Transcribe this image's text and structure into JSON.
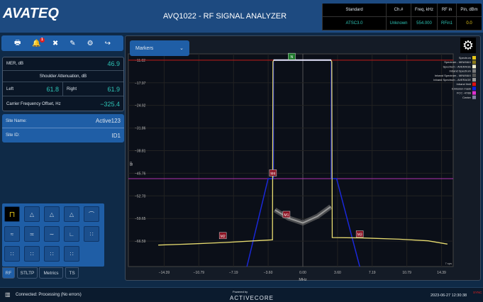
{
  "header": {
    "logo": "AVATEQ",
    "title": "AVQ1022 - RF SIGNAL ANALYZER",
    "info_headers": [
      "Standard",
      "Ch.#",
      "Freq, kHz",
      "RF in",
      "Pin, dBm"
    ],
    "info_values": [
      "ATSC3.0",
      "Unknown",
      "554.000",
      "RFin1",
      "0.0"
    ]
  },
  "toolbar": {
    "icons": [
      "printer-icon",
      "bell-icon",
      "tools-icon",
      "pencil-icon",
      "gears-icon",
      "logout-icon"
    ],
    "notification_count": "1"
  },
  "metrics": {
    "mer_label": "MER, dB",
    "mer": "46.9",
    "shoulder_label": "Shoulder Attenuation, dB",
    "left_label": "Left",
    "left": "61.8",
    "right_label": "Right",
    "right": "61.9",
    "cfo_label": "Carrier Frequency Offset, Hz",
    "cfo": "−325.4"
  },
  "site": {
    "name_label": "Site Name:",
    "name": "Active123",
    "id_label": "Site ID:",
    "id": "ID1"
  },
  "tabs": [
    "RF",
    "STLTP",
    "Metrics",
    "TS"
  ],
  "markers_dropdown": "Markers",
  "status": {
    "text": "Connected: Processing (No errors)",
    "powered": "Powered by",
    "brand": "ACTIVECORE",
    "datetime": "2023-06-27 12:30:38",
    "sync": "SYNC"
  },
  "chart_data": {
    "type": "line",
    "xlabel": "MHz",
    "ylabel": "dB",
    "corner_note": "7 sps",
    "xticks": [
      "−14.39",
      "−10.79",
      "−7.19",
      "−3.60",
      "0.00",
      "3.60",
      "7.19",
      "10.79",
      "14.39"
    ],
    "xtick_values": [
      -14.39,
      -10.79,
      -7.19,
      -3.6,
      0,
      3.6,
      7.19,
      10.79,
      14.39
    ],
    "yticks": [
      "−11.02",
      "−17.97",
      "−24.92",
      "−31.86",
      "−38.81",
      "−45.76",
      "−52.70",
      "−59.65",
      "−66.59"
    ],
    "ytick_values": [
      -11.02,
      -17.97,
      -24.92,
      -31.86,
      -38.81,
      -45.76,
      -52.7,
      -59.65,
      -66.59
    ],
    "xlim": [
      -18.1,
      15.6
    ],
    "ylim": [
      -74.4,
      -9.1
    ],
    "grid": true,
    "legend_position": "top-right",
    "legend": [
      {
        "name": "Spectrum",
        "color": "#e6c619"
      },
      {
        "name": "Spectrum - MIN/MAX",
        "color": "#8a7a1a"
      },
      {
        "name": "Spectrum - AVERAGE",
        "color": "#f3f0d0"
      },
      {
        "name": "Inband Spectrum",
        "color": "#7a7a7a"
      },
      {
        "name": "Inband Spectrum - MIN/MAX",
        "color": "#555555"
      },
      {
        "name": "Inband Spectrum - AVERAGE",
        "color": "#999999"
      },
      {
        "name": "Inband limit",
        "color": "#e01010"
      },
      {
        "name": "Emission mask",
        "color": "#1020e0"
      },
      {
        "name": "FCC -47dB",
        "color": "#e030d0"
      },
      {
        "name": "Center",
        "color": "#8080a0"
      }
    ],
    "spectrum": {
      "x": [
        -15,
        -12,
        -8,
        -5,
        -3.15,
        -3.1,
        -3.0,
        0,
        2.9,
        3.0,
        3.05,
        6,
        10,
        13,
        15
      ],
      "y": [
        -67.8,
        -67.5,
        -67,
        -66.5,
        -66.2,
        -11.5,
        -11,
        -11,
        -11,
        -11.5,
        -65.5,
        -65.6,
        -66,
        -66.5,
        -67.5
      ]
    },
    "inband": {
      "x": [
        -2.9,
        -1.5,
        0,
        1.5,
        2.9
      ],
      "y": [
        -57,
        -59.5,
        -61,
        -59,
        -56
      ]
    },
    "inband_limit": -11.02,
    "fcc_line": -47.4,
    "emission_mask": {
      "left": {
        "x": [
          -5.8,
          -3.6,
          -3.05,
          -3.05
        ],
        "y": [
          -74.4,
          -47.4,
          -47.4,
          -11.5
        ]
      },
      "right": {
        "x": [
          2.95,
          2.95,
          3.5,
          5.9
        ],
        "y": [
          -11.5,
          -47.4,
          -47.4,
          -74.4
        ]
      }
    },
    "markers": [
      {
        "label": "N",
        "x": -1.15,
        "y": -10
      },
      {
        "label": "M4",
        "x": -3.1,
        "y": -45.76
      },
      {
        "label": "M1",
        "x": -1.7,
        "y": -58.5
      },
      {
        "label": "M2",
        "x": -8.3,
        "y": -65
      },
      {
        "label": "M3",
        "x": 5.9,
        "y": -64.5
      }
    ]
  }
}
